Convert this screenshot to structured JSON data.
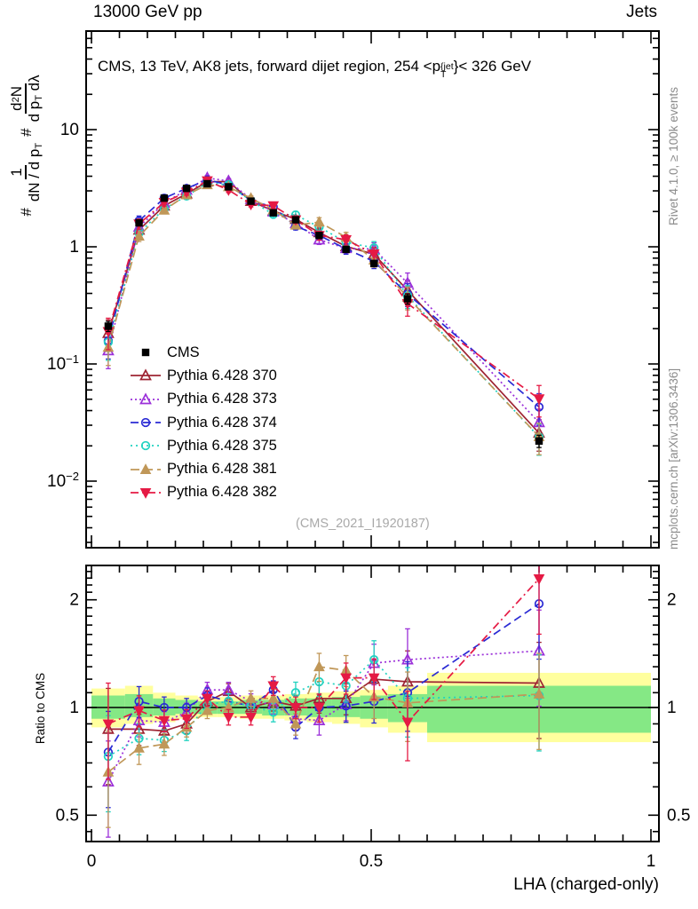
{
  "header": {
    "left": "13000 GeV pp",
    "right": "Jets"
  },
  "panel_title": {
    "prefix": "CMS, 13 TeV, AK8 jets, forward dijet region, 254 <p",
    "sup": "{jet",
    "sub": "T",
    "suffix": "}< 326 GeV"
  },
  "ylabel": {
    "hash1": "#",
    "num1": "1",
    "den1_a": "dN / d p",
    "den1_sub": "T",
    "hash2": "#",
    "num2_a": "d",
    "num2_sup": "2",
    "num2_b": "N",
    "den2_a": "d p",
    "den2_sub": "T",
    "den2_b": " dλ"
  },
  "ratio_label": "Ratio to CMS",
  "x_title": "LHA (charged-only)",
  "watermark": "(CMS_2021_I1920187)",
  "side_notes": {
    "top": "Rivet 4.1.0, ≥ 100k events",
    "bottom": "mcplots.cern.ch [arXiv:1306.3436]"
  },
  "axes": {
    "x_ticks": [
      {
        "v": 0,
        "label": "0"
      },
      {
        "v": 0.5,
        "label": "0.5"
      },
      {
        "v": 1,
        "label": "1"
      }
    ],
    "x_minor_step": 0.05,
    "main_y_ticks": [
      {
        "v": 10,
        "base": "10",
        "exp": ""
      },
      {
        "v": 1,
        "base": "1",
        "exp": ""
      },
      {
        "v": 0.1,
        "base": "10",
        "exp": "−1"
      },
      {
        "v": 0.01,
        "base": "10",
        "exp": "−2"
      }
    ],
    "ratio_y_ticks": [
      {
        "v": 2,
        "label": "2"
      },
      {
        "v": 1,
        "label": "1"
      },
      {
        "v": 0.5,
        "label": "0.5"
      }
    ],
    "ratio_y_minor": [
      0.45,
      0.6,
      0.7,
      0.8,
      0.9,
      1.1,
      1.2,
      1.3,
      1.4,
      1.5,
      1.6,
      1.7,
      1.8,
      1.9,
      2.1,
      2.2,
      2.3,
      2.4
    ]
  },
  "chart_data": {
    "type": "line",
    "title": "CMS, 13 TeV, AK8 jets, forward dijet region, 254 < pT{jet} < 326 GeV",
    "xlabel": "LHA (charged-only)",
    "ylabel": "# 1/(dN/dpT) # d2N/(dpT dlambda)",
    "x_range": [
      0,
      1
    ],
    "main_y_scale": "log",
    "main_y_range": [
      0.0027,
      69
    ],
    "ratio_y_scale": "log",
    "ratio_y_range": [
      0.42,
      2.5
    ],
    "bin_edges": [
      0,
      0.06,
      0.11,
      0.15,
      0.19,
      0.225,
      0.265,
      0.305,
      0.345,
      0.385,
      0.43,
      0.48,
      0.53,
      0.6,
      1.0
    ],
    "x": [
      0.03,
      0.085,
      0.13,
      0.17,
      0.207,
      0.245,
      0.285,
      0.325,
      0.365,
      0.407,
      0.455,
      0.505,
      0.565,
      0.8
    ],
    "cms": {
      "label": "CMS",
      "color": "#000000",
      "marker": "square",
      "values": [
        0.21,
        1.6,
        2.6,
        3.15,
        3.45,
        3.25,
        2.45,
        1.95,
        1.7,
        1.25,
        0.95,
        0.72,
        0.36,
        0.022
      ],
      "rel_err": [
        0.1,
        0.05,
        0.04,
        0.03,
        0.03,
        0.03,
        0.03,
        0.03,
        0.04,
        0.04,
        0.05,
        0.06,
        0.1,
        0.12
      ]
    },
    "series": [
      {
        "label": "Pythia 6.428 370",
        "color": "#9e2433",
        "dash": "",
        "marker": "tri-open",
        "ratio": [
          0.87,
          0.87,
          0.86,
          0.9,
          1.04,
          1.11,
          1.0,
          1.04,
          1.01,
          1.06,
          1.06,
          1.2,
          1.18,
          1.17
        ]
      },
      {
        "label": "Pythia 6.428 373",
        "color": "#9b30d9",
        "dash": "2 3",
        "marker": "tri-open",
        "ratio": [
          0.62,
          0.92,
          0.91,
          0.97,
          1.12,
          1.12,
          1.04,
          1.02,
          0.93,
          0.92,
          1.02,
          1.33,
          1.36,
          1.44
        ]
      },
      {
        "label": "Pythia 6.428 374",
        "color": "#2a2ad4",
        "dash": "9 5",
        "marker": "circle-open",
        "ratio": [
          0.75,
          1.04,
          1.0,
          1.0,
          1.08,
          1.04,
          1.01,
          1.12,
          0.88,
          1.0,
          1.01,
          1.04,
          1.1,
          1.95
        ]
      },
      {
        "label": "Pythia 6.428 375",
        "color": "#20d2c0",
        "dash": "2 4",
        "marker": "circle-open",
        "ratio": [
          0.73,
          0.82,
          0.81,
          0.86,
          1.02,
          1.04,
          1.01,
          0.97,
          1.1,
          1.18,
          1.15,
          1.36,
          1.06,
          1.08
        ]
      },
      {
        "label": "Pythia 6.428 381",
        "color": "#c09758",
        "dash": "10 5",
        "marker": "tri-filled",
        "ratio": [
          0.66,
          0.77,
          0.79,
          0.88,
          0.98,
          1.0,
          1.06,
          1.06,
          0.9,
          1.3,
          1.27,
          1.07,
          1.03,
          1.09
        ]
      },
      {
        "label": "Pythia 6.428 382",
        "color": "#e51a44",
        "dash": "9 4 2 4",
        "marker": "tridown-filled",
        "ratio": [
          0.9,
          0.98,
          0.92,
          0.93,
          1.06,
          0.94,
          0.94,
          1.15,
          1.0,
          1.0,
          1.21,
          1.21,
          0.91,
          2.29
        ]
      }
    ],
    "ratio_rel_err": [
      0.3,
      0.1,
      0.07,
      0.06,
      0.05,
      0.05,
      0.05,
      0.06,
      0.07,
      0.09,
      0.1,
      0.13,
      0.22,
      0.3
    ],
    "bands": {
      "yellow_color": "#ffff9e",
      "green_color": "#85e885",
      "yellow_lo": [
        0.88,
        0.9,
        0.91,
        0.93,
        0.94,
        0.94,
        0.93,
        0.93,
        0.92,
        0.91,
        0.9,
        0.88,
        0.85,
        0.8
      ],
      "yellow_hi": [
        1.13,
        1.15,
        1.1,
        1.08,
        1.07,
        1.07,
        1.08,
        1.08,
        1.09,
        1.1,
        1.11,
        1.12,
        1.15,
        1.25
      ],
      "green_lo": [
        0.93,
        0.94,
        0.95,
        0.96,
        0.96,
        0.96,
        0.96,
        0.95,
        0.95,
        0.94,
        0.94,
        0.93,
        0.91,
        0.85
      ],
      "green_hi": [
        1.08,
        1.09,
        1.06,
        1.05,
        1.04,
        1.04,
        1.05,
        1.05,
        1.06,
        1.06,
        1.07,
        1.08,
        1.09,
        1.15
      ]
    }
  }
}
